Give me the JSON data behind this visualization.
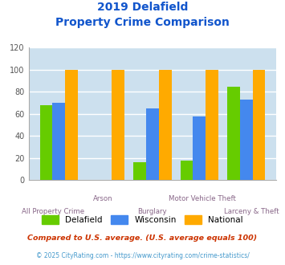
{
  "title_line1": "2019 Delafield",
  "title_line2": "Property Crime Comparison",
  "categories": [
    "All Property Crime",
    "Arson",
    "Burglary",
    "Motor Vehicle Theft",
    "Larceny & Theft"
  ],
  "delafield": [
    68,
    0,
    16,
    18,
    85
  ],
  "wisconsin": [
    70,
    0,
    65,
    58,
    73
  ],
  "national": [
    100,
    100,
    100,
    100,
    100
  ],
  "delafield_color": "#66cc00",
  "wisconsin_color": "#4488ee",
  "national_color": "#ffaa00",
  "ylim": [
    0,
    120
  ],
  "yticks": [
    0,
    20,
    40,
    60,
    80,
    100,
    120
  ],
  "footnote1": "Compared to U.S. average. (U.S. average equals 100)",
  "footnote2": "© 2025 CityRating.com - https://www.cityrating.com/crime-statistics/",
  "title_color": "#1155cc",
  "footnote1_color": "#cc3300",
  "footnote2_color": "#4499cc",
  "plot_bg_color": "#cce0ee",
  "grid_color": "#ffffff",
  "tick_label_color": "#886688"
}
